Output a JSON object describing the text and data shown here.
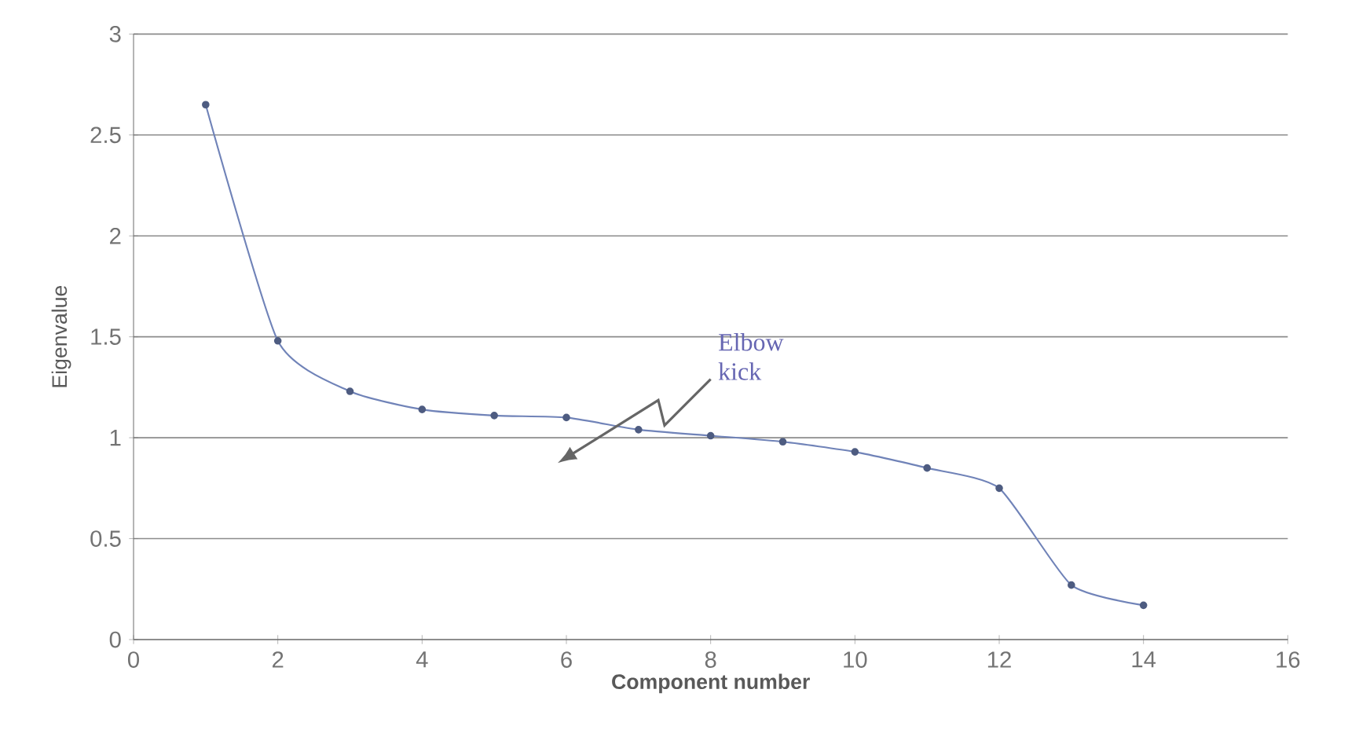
{
  "chart_data": {
    "type": "line",
    "xlabel": "Component number",
    "ylabel": "Eigenvalue",
    "x": [
      1,
      2,
      3,
      4,
      5,
      6,
      7,
      8,
      9,
      10,
      11,
      12,
      13,
      14
    ],
    "series": [
      {
        "color": "#7083b8",
        "values": [
          2.65,
          1.48,
          1.23,
          1.14,
          1.11,
          1.1,
          1.04,
          1.01,
          0.98,
          0.93,
          0.85,
          0.75,
          0.27,
          0.17
        ]
      }
    ],
    "xlim": [
      0,
      16
    ],
    "xticks": [
      0,
      2,
      4,
      6,
      8,
      10,
      12,
      14,
      16
    ],
    "ylim": [
      0,
      3
    ],
    "yticks": [
      0,
      0.5,
      1,
      1.5,
      2,
      2.5,
      3
    ],
    "grid": "y",
    "marker": "circle",
    "line_style": "solid",
    "annotations": [
      "Elbow kick"
    ]
  }
}
